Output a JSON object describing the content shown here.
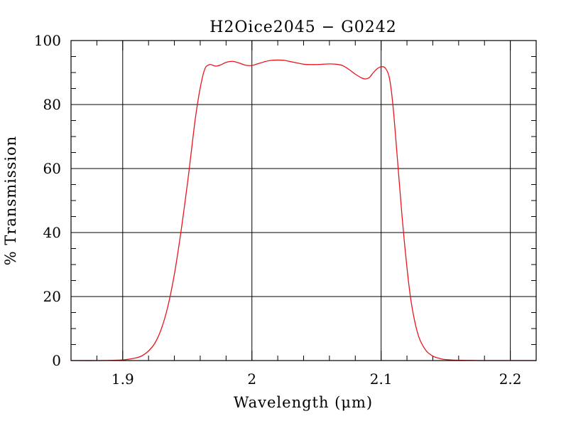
{
  "chart_data": {
    "type": "line",
    "title": "H2Oice2045 − G0242",
    "xlabel": "Wavelength (μm)",
    "ylabel": "% Transmission",
    "xlim": [
      1.86,
      2.22
    ],
    "ylim": [
      0,
      100
    ],
    "grid": true,
    "x_ticks": [
      1.9,
      2.0,
      2.1,
      2.2
    ],
    "x_tick_labels": [
      "1.9",
      "2",
      "2.1",
      "2.2"
    ],
    "y_ticks": [
      0,
      20,
      40,
      60,
      80,
      100
    ],
    "y_tick_labels": [
      "0",
      "20",
      "40",
      "60",
      "80",
      "100"
    ],
    "colors": {
      "series": "#e8161c",
      "grid": "#000000",
      "axes": "#000000"
    },
    "series": [
      {
        "x": [
          1.86,
          1.88,
          1.9,
          1.91,
          1.915,
          1.92,
          1.925,
          1.93,
          1.935,
          1.94,
          1.945,
          1.95,
          1.953,
          1.956,
          1.959,
          1.962,
          1.964,
          1.966,
          1.968,
          1.972,
          1.976,
          1.98,
          1.985,
          1.99,
          1.995,
          2.0,
          2.005,
          2.01,
          2.015,
          2.02,
          2.025,
          2.03,
          2.035,
          2.04,
          2.045,
          2.05,
          2.055,
          2.06,
          2.065,
          2.07,
          2.075,
          2.08,
          2.085,
          2.088,
          2.091,
          2.094,
          2.097,
          2.1,
          2.103,
          2.106,
          2.108,
          2.11,
          2.112,
          2.114,
          2.116,
          2.118,
          2.12,
          2.122,
          2.124,
          2.127,
          2.13,
          2.135,
          2.14,
          2.145,
          2.15,
          2.16,
          2.17,
          2.18,
          2.2,
          2.22
        ],
        "y": [
          0.0,
          0.0,
          0.2,
          0.8,
          1.5,
          3.0,
          5.5,
          10.0,
          17.0,
          27.0,
          40.0,
          55.0,
          65.0,
          75.0,
          83.0,
          89.0,
          91.5,
          92.3,
          92.5,
          92.0,
          92.4,
          93.2,
          93.5,
          93.0,
          92.3,
          92.2,
          92.8,
          93.4,
          93.8,
          93.9,
          93.8,
          93.4,
          93.0,
          92.6,
          92.5,
          92.5,
          92.6,
          92.7,
          92.6,
          92.2,
          91.0,
          89.5,
          88.3,
          88.0,
          88.5,
          90.0,
          91.2,
          91.8,
          91.5,
          89.0,
          84.0,
          76.0,
          66.0,
          56.0,
          46.0,
          37.0,
          29.0,
          22.0,
          16.5,
          10.5,
          6.5,
          3.0,
          1.4,
          0.7,
          0.3,
          0.1,
          0.05,
          0.0,
          0.0,
          0.0
        ]
      }
    ]
  }
}
